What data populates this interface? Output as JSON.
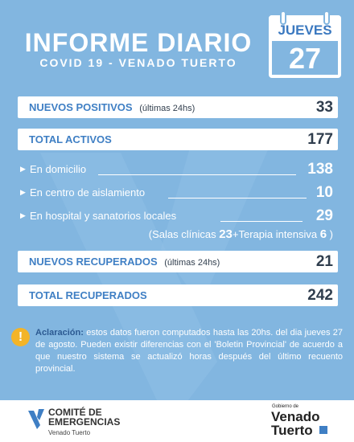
{
  "header": {
    "title": "INFORME DIARIO",
    "subtitle": "COVID 19 - VENADO TUERTO"
  },
  "calendar": {
    "weekday": "JUEVES",
    "day": "27"
  },
  "stats": {
    "nuevos_positivos": {
      "label": "NUEVOS POSITIVOS",
      "note": "(últimas 24hs)",
      "value": "33"
    },
    "total_activos": {
      "label": "TOTAL ACTIVOS",
      "value": "177"
    },
    "nuevos_recuperados": {
      "label": "NUEVOS RECUPERADOS",
      "note": "(últimas 24hs)",
      "value": "21"
    },
    "total_recuperados": {
      "label": "TOTAL RECUPERADOS",
      "value": "242"
    }
  },
  "breakdown": [
    {
      "label": "En domicilio",
      "value": "138"
    },
    {
      "label": "En centro de aislamiento",
      "value": "10"
    },
    {
      "label": "En hospital y sanatorios locales",
      "value": "29"
    }
  ],
  "hospital_detail": {
    "open": "(",
    "salas_label": "Salas clínicas",
    "salas_value": "23",
    "plus": "+",
    "terapia_label": "Terapia intensiva",
    "terapia_value": "6",
    "close": ")"
  },
  "note": {
    "icon": "!",
    "lead": "Aclaración:",
    "text": "estos datos fueron computados hasta las 20hs. del dia jueves 27 de agosto. Pueden existir diferencias con el 'Boletin Provincial' de acuerdo a que nuestro sistema se actualizó horas después del último recuento provincial."
  },
  "footer": {
    "committee_line1": "COMITÉ DE",
    "committee_line2": "EMERGENCIAS",
    "committee_sub": "Venado Tuerto",
    "gob_small": "Gobierno de",
    "gob_line1": "Venado",
    "gob_line2": "Tuerto"
  },
  "colors": {
    "background": "#82b6e0",
    "accent": "#3f7fc4",
    "warning": "#f3b428"
  }
}
